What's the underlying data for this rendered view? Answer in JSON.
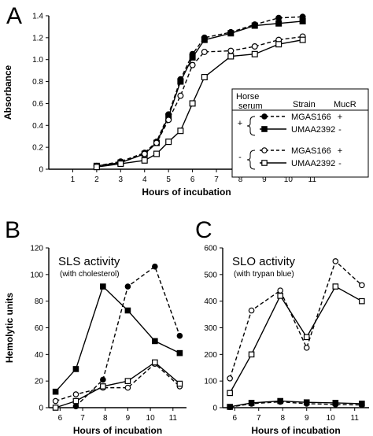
{
  "panels": {
    "A": "A",
    "B": "B",
    "C": "C"
  },
  "chart_data": [
    {
      "panel": "A",
      "type": "line",
      "xlabel": "Hours of incubation",
      "ylabel": "Absorbance",
      "xlim": [
        0,
        11.5
      ],
      "ylim": [
        0,
        1.4
      ],
      "xticks": [
        1,
        2,
        3,
        4,
        5,
        6,
        7,
        8,
        9,
        10,
        11
      ],
      "yticks": [
        0,
        0.2,
        0.4,
        0.6,
        0.8,
        1.0,
        1.2,
        1.4
      ],
      "ytick_labels": [
        "0",
        "0.2",
        "0.4",
        "0.6",
        "0.8",
        "1.0",
        "1.2",
        "1.4"
      ],
      "legend": {
        "headers": [
          "Horse serum",
          "Strain",
          "MucR"
        ],
        "rows": [
          {
            "serum": "+",
            "strain": "MGAS166",
            "mucr": "+"
          },
          {
            "serum": "",
            "strain": "UMAA2392",
            "mucr": "-"
          },
          {
            "serum": "-",
            "strain": "MGAS166",
            "mucr": "+"
          },
          {
            "serum": "",
            "strain": "UMAA2392",
            "mucr": "-"
          }
        ]
      },
      "series": [
        {
          "marker": "filled-circle",
          "line": "dashed",
          "x": [
            2,
            3,
            4,
            4.5,
            5,
            5.5,
            6,
            6.5,
            7.6,
            8.6,
            9.6,
            10.6
          ],
          "y": [
            0.03,
            0.07,
            0.15,
            0.25,
            0.5,
            0.82,
            1.05,
            1.2,
            1.25,
            1.32,
            1.38,
            1.39
          ]
        },
        {
          "marker": "filled-square",
          "line": "solid",
          "x": [
            2,
            3,
            4,
            4.5,
            5,
            5.5,
            6,
            6.5,
            7.6,
            8.6,
            9.6,
            10.6
          ],
          "y": [
            0.03,
            0.06,
            0.14,
            0.24,
            0.48,
            0.8,
            1.02,
            1.18,
            1.24,
            1.31,
            1.33,
            1.35
          ]
        },
        {
          "marker": "open-circle",
          "line": "dashed",
          "x": [
            2,
            3,
            4,
            4.5,
            5,
            5.5,
            6,
            6.5,
            7.6,
            8.6,
            9.6,
            10.6
          ],
          "y": [
            0.03,
            0.06,
            0.14,
            0.24,
            0.45,
            0.67,
            0.95,
            1.07,
            1.08,
            1.12,
            1.18,
            1.21
          ]
        },
        {
          "marker": "open-square",
          "line": "solid",
          "x": [
            2,
            3,
            4,
            4.5,
            5,
            5.5,
            6,
            6.5,
            7.6,
            8.6,
            9.6,
            10.6
          ],
          "y": [
            0.02,
            0.05,
            0.08,
            0.14,
            0.25,
            0.35,
            0.6,
            0.84,
            1.03,
            1.05,
            1.14,
            1.18
          ]
        }
      ]
    },
    {
      "panel": "B",
      "type": "line",
      "title": "SLS activity",
      "subtitle": "(with cholesterol)",
      "xlabel": "Hours of incubation",
      "ylabel": "Hemolytic units",
      "xlim": [
        5.5,
        11.6
      ],
      "ylim": [
        0,
        120
      ],
      "xticks": [
        6,
        7,
        8,
        9,
        10,
        11
      ],
      "yticks": [
        0,
        20,
        40,
        60,
        80,
        100,
        120
      ],
      "series": [
        {
          "marker": "filled-circle",
          "line": "dashed",
          "x": [
            6.7,
            7.9,
            9.0,
            10.2,
            11.3
          ],
          "y": [
            1,
            21,
            91,
            106,
            54
          ]
        },
        {
          "marker": "filled-square",
          "line": "solid",
          "x": [
            5.8,
            6.7,
            7.9,
            9.0,
            10.2,
            11.3
          ],
          "y": [
            12,
            29,
            91,
            73,
            50,
            41
          ]
        },
        {
          "marker": "open-circle",
          "line": "dashed",
          "x": [
            5.8,
            6.7,
            7.9,
            9.0,
            10.2,
            11.3
          ],
          "y": [
            5,
            10,
            15,
            15,
            33,
            16
          ]
        },
        {
          "marker": "open-square",
          "line": "solid",
          "x": [
            5.8,
            6.7,
            7.9,
            9.0,
            10.2,
            11.3
          ],
          "y": [
            0,
            5,
            16,
            20,
            34,
            18
          ]
        }
      ]
    },
    {
      "panel": "C",
      "type": "line",
      "title": "SLO activity",
      "subtitle": "(with trypan blue)",
      "xlabel": "Hours of incubation",
      "ylabel": "",
      "xlim": [
        5.5,
        11.6
      ],
      "ylim": [
        0,
        600
      ],
      "xticks": [
        6,
        7,
        8,
        9,
        10,
        11
      ],
      "yticks": [
        0,
        100,
        200,
        300,
        400,
        500,
        600
      ],
      "series": [
        {
          "marker": "filled-circle",
          "line": "dashed",
          "x": [
            5.8,
            6.7,
            7.9,
            9.0,
            10.2,
            11.3
          ],
          "y": [
            2,
            15,
            22,
            15,
            12,
            10
          ]
        },
        {
          "marker": "filled-square",
          "line": "solid",
          "x": [
            5.8,
            6.7,
            7.9,
            9.0,
            10.2,
            11.3
          ],
          "y": [
            3,
            18,
            25,
            20,
            18,
            15
          ]
        },
        {
          "marker": "open-circle",
          "line": "dashed",
          "x": [
            5.8,
            6.7,
            7.9,
            9.0,
            10.2,
            11.3
          ],
          "y": [
            110,
            365,
            440,
            225,
            550,
            460
          ]
        },
        {
          "marker": "open-square",
          "line": "solid",
          "x": [
            5.8,
            6.7,
            7.9,
            9.0,
            10.2,
            11.3
          ],
          "y": [
            55,
            200,
            420,
            265,
            455,
            400
          ]
        }
      ]
    }
  ]
}
